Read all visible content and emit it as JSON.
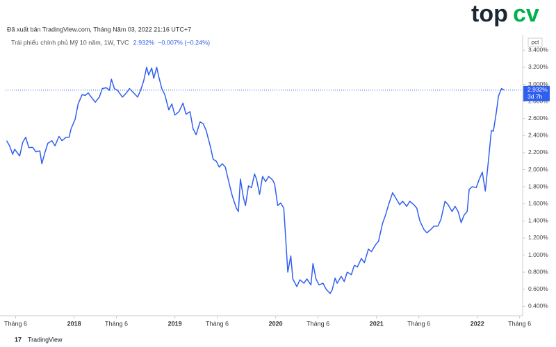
{
  "chart_data": {
    "type": "line",
    "published": "Đã xuất bản TradingView.com, Tháng Năm 03, 2022 21:16 UTC+7",
    "symbol": "Trái phiếu chính phủ Mỹ 10 năm, 1W, TVC",
    "last_text": "2.932%",
    "change": "−0.007% (−0.24%)",
    "axis_unit": "pct",
    "price_label": "2.932%",
    "countdown": "3d 7h",
    "brand": "TradingView",
    "logo_left": "top",
    "logo_right": "cv",
    "line_color": "#2f5ff0",
    "x": [
      2017.33,
      2017.36,
      2017.39,
      2017.41,
      2017.46,
      2017.49,
      2017.52,
      2017.55,
      2017.59,
      2017.62,
      2017.66,
      2017.68,
      2017.71,
      2017.74,
      2017.78,
      2017.81,
      2017.85,
      2017.88,
      2017.92,
      2017.95,
      2017.97,
      2018.01,
      2018.04,
      2018.08,
      2018.11,
      2018.14,
      2018.17,
      2018.21,
      2018.25,
      2018.28,
      2018.32,
      2018.35,
      2018.37,
      2018.4,
      2018.43,
      2018.48,
      2018.52,
      2018.55,
      2018.59,
      2018.63,
      2018.66,
      2018.69,
      2018.72,
      2018.74,
      2018.77,
      2018.79,
      2018.82,
      2018.84,
      2018.87,
      2018.9,
      2018.94,
      2018.97,
      2019.0,
      2019.04,
      2019.08,
      2019.11,
      2019.15,
      2019.18,
      2019.21,
      2019.25,
      2019.28,
      2019.31,
      2019.35,
      2019.38,
      2019.41,
      2019.44,
      2019.47,
      2019.5,
      2019.54,
      2019.57,
      2019.61,
      2019.63,
      2019.65,
      2019.68,
      2019.7,
      2019.73,
      2019.76,
      2019.79,
      2019.81,
      2019.84,
      2019.87,
      2019.9,
      2019.93,
      2019.97,
      2019.99,
      2020.02,
      2020.05,
      2020.08,
      2020.1,
      2020.12,
      2020.15,
      2020.17,
      2020.21,
      2020.24,
      2020.28,
      2020.31,
      2020.35,
      2020.37,
      2020.4,
      2020.43,
      2020.47,
      2020.5,
      2020.54,
      2020.56,
      2020.59,
      2020.61,
      2020.65,
      2020.68,
      2020.71,
      2020.75,
      2020.78,
      2020.81,
      2020.85,
      2020.88,
      2020.92,
      2020.95,
      2020.99,
      2021.02,
      2021.06,
      2021.09,
      2021.12,
      2021.16,
      2021.19,
      2021.23,
      2021.26,
      2021.3,
      2021.33,
      2021.37,
      2021.4,
      2021.43,
      2021.47,
      2021.5,
      2021.54,
      2021.57,
      2021.61,
      2021.64,
      2021.68,
      2021.71,
      2021.75,
      2021.78,
      2021.81,
      2021.84,
      2021.87,
      2021.9,
      2021.92,
      2021.95,
      2021.99,
      2022.02,
      2022.05,
      2022.08,
      2022.11,
      2022.14,
      2022.16,
      2022.19,
      2022.21,
      2022.24,
      2022.27
    ],
    "series": [
      {
        "name": "Trái phiếu chính phủ Mỹ 10 năm",
        "color": "#2f5ff0",
        "values": [
          2.34,
          2.28,
          2.18,
          2.24,
          2.16,
          2.32,
          2.38,
          2.26,
          2.26,
          2.21,
          2.22,
          2.07,
          2.2,
          2.31,
          2.34,
          2.28,
          2.39,
          2.34,
          2.38,
          2.38,
          2.48,
          2.59,
          2.77,
          2.88,
          2.87,
          2.9,
          2.85,
          2.79,
          2.85,
          2.95,
          2.96,
          2.93,
          3.06,
          2.95,
          2.93,
          2.85,
          2.9,
          2.95,
          2.9,
          2.85,
          2.93,
          3.04,
          3.2,
          3.11,
          3.19,
          3.07,
          3.2,
          3.09,
          2.95,
          2.88,
          2.7,
          2.77,
          2.64,
          2.68,
          2.78,
          2.65,
          2.68,
          2.48,
          2.41,
          2.56,
          2.54,
          2.46,
          2.28,
          2.12,
          2.1,
          2.03,
          2.07,
          2.03,
          1.83,
          1.69,
          1.55,
          1.51,
          1.89,
          1.67,
          1.58,
          1.81,
          1.79,
          1.95,
          1.89,
          1.71,
          1.92,
          1.86,
          1.92,
          1.88,
          1.83,
          1.58,
          1.61,
          1.55,
          1.18,
          0.8,
          0.99,
          0.72,
          0.63,
          0.71,
          0.67,
          0.72,
          0.65,
          0.9,
          0.72,
          0.65,
          0.67,
          0.6,
          0.55,
          0.59,
          0.73,
          0.67,
          0.75,
          0.69,
          0.8,
          0.77,
          0.88,
          0.86,
          0.96,
          0.91,
          1.07,
          1.04,
          1.12,
          1.16,
          1.37,
          1.47,
          1.59,
          1.73,
          1.67,
          1.59,
          1.63,
          1.57,
          1.63,
          1.59,
          1.55,
          1.4,
          1.3,
          1.26,
          1.3,
          1.34,
          1.34,
          1.42,
          1.63,
          1.59,
          1.51,
          1.57,
          1.51,
          1.38,
          1.47,
          1.51,
          1.77,
          1.8,
          1.79,
          1.89,
          1.97,
          1.75,
          2.1,
          2.46,
          2.45,
          2.68,
          2.86,
          2.95,
          2.932
        ]
      }
    ],
    "xlim": [
      2017.32,
      2022.45
    ],
    "xticks": [
      {
        "value": 2017.42,
        "label": "Tháng 6"
      },
      2018,
      {
        "value": 2018.42,
        "label": "Tháng 6"
      },
      2019,
      {
        "value": 2019.42,
        "label": "Tháng 6"
      },
      2020,
      {
        "value": 2020.42,
        "label": "Tháng 6"
      },
      2021,
      {
        "value": 2021.42,
        "label": "Tháng 6"
      },
      2022,
      {
        "value": 2022.42,
        "label": "Tháng 6"
      }
    ],
    "ylim": [
      0.3,
      3.5
    ],
    "yticks": [
      {
        "value": 3.4,
        "label": "3.400%"
      },
      {
        "value": 3.2,
        "label": "3.200%"
      },
      {
        "value": 3.0,
        "label": "3.000%"
      },
      {
        "value": 2.8,
        "label": "2.800%"
      },
      {
        "value": 2.6,
        "label": "2.600%"
      },
      {
        "value": 2.4,
        "label": "2.400%"
      },
      {
        "value": 2.2,
        "label": "2.200%"
      },
      {
        "value": 2.0,
        "label": "2.000%"
      },
      {
        "value": 1.8,
        "label": "1.800%"
      },
      {
        "value": 1.6,
        "label": "1.600%"
      },
      {
        "value": 1.4,
        "label": "1.400%"
      },
      {
        "value": 1.2,
        "label": "1.200%"
      },
      {
        "value": 1.0,
        "label": "1.000%"
      },
      {
        "value": 0.8,
        "label": "0.800%"
      },
      {
        "value": 0.6,
        "label": "0.600%"
      },
      {
        "value": 0.4,
        "label": "0.400%"
      }
    ],
    "grid": false
  }
}
